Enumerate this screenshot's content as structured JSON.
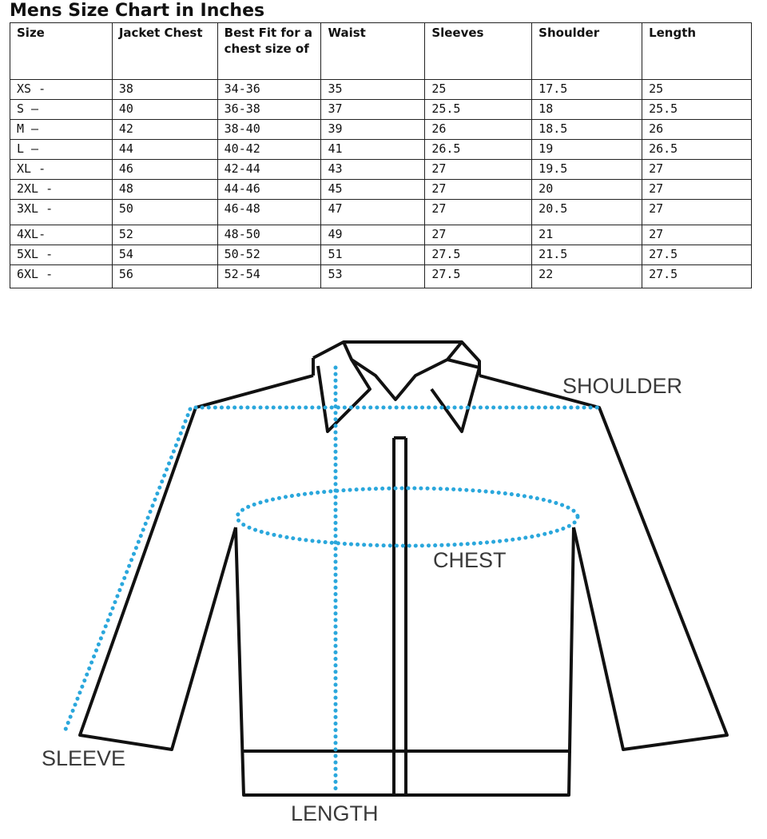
{
  "title": "Mens Size Chart in Inches",
  "table": {
    "headers": [
      "Size",
      "Jacket Chest",
      "Best Fit for a chest size of",
      "Waist",
      "Sleeves",
      "Shoulder",
      "Length"
    ],
    "rows": [
      [
        "XS -",
        "38",
        "34-36",
        "35",
        "25",
        "17.5",
        "25"
      ],
      [
        "S –",
        "40",
        "36-38",
        "37",
        "25.5",
        "18",
        "25.5"
      ],
      [
        "M –",
        "42",
        "38-40",
        "39",
        "26",
        "18.5",
        "26"
      ],
      [
        "L –",
        "44",
        "40-42",
        "41",
        "26.5",
        "19",
        "26.5"
      ],
      [
        "XL -",
        "46",
        "42-44",
        "43",
        "27",
        "19.5",
        "27"
      ],
      [
        "2XL -",
        "48",
        "44-46",
        "45",
        "27",
        "20",
        "27"
      ],
      [
        "3XL -",
        "50",
        "46-48",
        "47",
        "27",
        "20.5",
        "27"
      ],
      [
        "4XL-",
        "52",
        "48-50",
        "49",
        "27",
        "21",
        "27"
      ],
      [
        "5XL -",
        "54",
        "50-52",
        "51",
        "27.5",
        "21.5",
        "27.5"
      ],
      [
        "6XL -",
        "56",
        "52-54",
        "53",
        "27.5",
        "22",
        "27.5"
      ]
    ]
  },
  "diagram": {
    "labels": {
      "shoulder": "SHOULDER",
      "chest": "CHEST",
      "sleeve": "SLEEVE",
      "length": "LENGTH"
    },
    "measure_color": "#2aa7dc",
    "outline_color": "#111111"
  }
}
